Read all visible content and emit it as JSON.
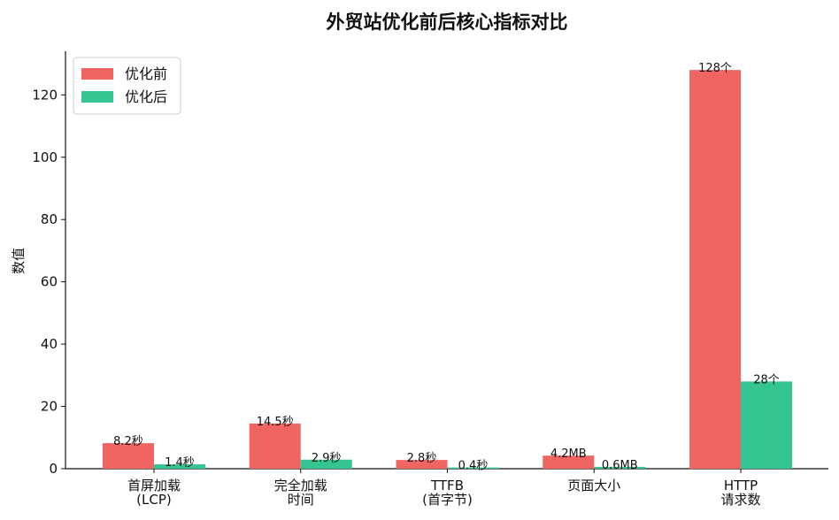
{
  "chart_data": {
    "type": "bar",
    "title": "外贸站优化前后核心指标对比",
    "ylabel": "数值",
    "xlabel": "",
    "ylim": [
      0,
      134
    ],
    "yticks": [
      0,
      20,
      40,
      60,
      80,
      100,
      120
    ],
    "categories": [
      [
        "首屏加载",
        "(LCP)"
      ],
      [
        "完全加载",
        "时间"
      ],
      [
        "TTFB",
        "(首字节)"
      ],
      [
        "页面大小"
      ],
      [
        "HTTP",
        "请求数"
      ]
    ],
    "series": [
      {
        "name": "优化前",
        "color": "#f06462",
        "values": [
          8.2,
          14.5,
          2.8,
          4.2,
          128
        ],
        "labels": [
          "8.2秒",
          "14.5秒",
          "2.8秒",
          "4.2MB",
          "128个"
        ]
      },
      {
        "name": "优化后",
        "color": "#34c591",
        "values": [
          1.4,
          2.9,
          0.4,
          0.6,
          28
        ],
        "labels": [
          "1.4秒",
          "2.9秒",
          "0.4秒",
          "0.6MB",
          "28个"
        ]
      }
    ],
    "legend": "top-left",
    "grid": false
  }
}
